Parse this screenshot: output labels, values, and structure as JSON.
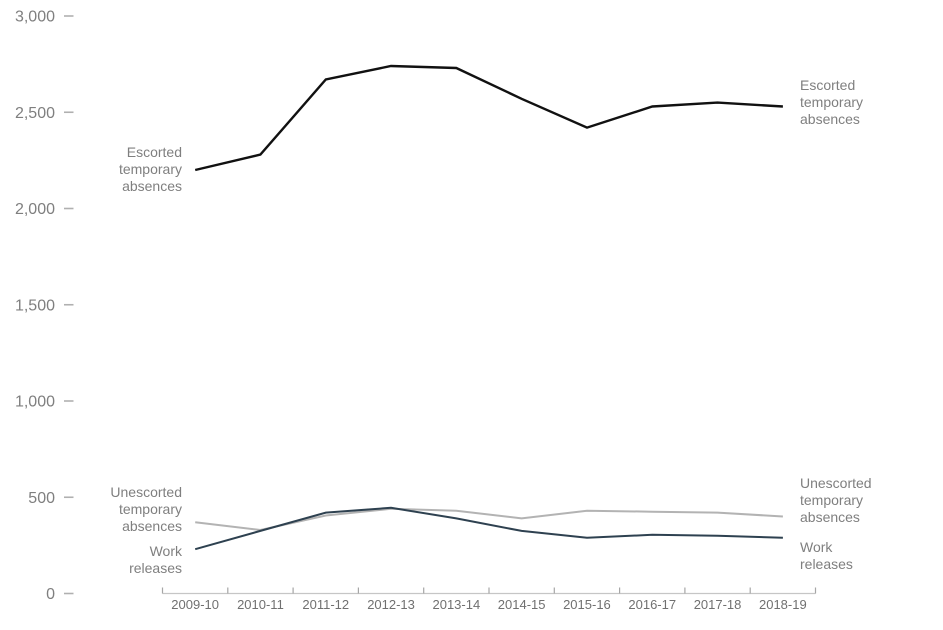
{
  "chart_data": {
    "type": "line",
    "title": "",
    "xlabel": "",
    "ylabel": "",
    "categories": [
      "2009-10",
      "2010-11",
      "2011-12",
      "2012-13",
      "2013-14",
      "2014-15",
      "2015-16",
      "2016-17",
      "2017-18",
      "2018-19"
    ],
    "series": [
      {
        "name": "Escorted temporary absences",
        "label_lines": [
          "Escorted",
          "temporary",
          "absences"
        ],
        "color": "#111111",
        "stroke_width": 2.4,
        "values": [
          2200,
          2280,
          2670,
          2740,
          2730,
          2570,
          2420,
          2530,
          2550,
          2530
        ]
      },
      {
        "name": "Unescorted temporary absences",
        "label_lines": [
          "Unescorted",
          "temporary",
          "absences"
        ],
        "color": "#b3b3b3",
        "stroke_width": 2,
        "values": [
          370,
          330,
          405,
          440,
          430,
          390,
          430,
          425,
          420,
          400
        ]
      },
      {
        "name": "Work releases",
        "label_lines": [
          "Work",
          "releases"
        ],
        "color": "#2e4150",
        "stroke_width": 2,
        "values": [
          230,
          325,
          420,
          445,
          390,
          325,
          290,
          305,
          300,
          290
        ]
      }
    ],
    "ylim": [
      0,
      3000
    ],
    "ytick_step": 500,
    "ytick_labels": [
      "0",
      "500",
      "1,000",
      "1,500",
      "2,000",
      "2,500",
      "3,000"
    ],
    "grid": false,
    "legend_position": "inline-labels-at-both-line-ends",
    "axis_colors": {
      "axis_line": "#c6c6c6",
      "tick_mark": "#a6a6a6",
      "ytick_dash": "#b0b0b0"
    }
  }
}
